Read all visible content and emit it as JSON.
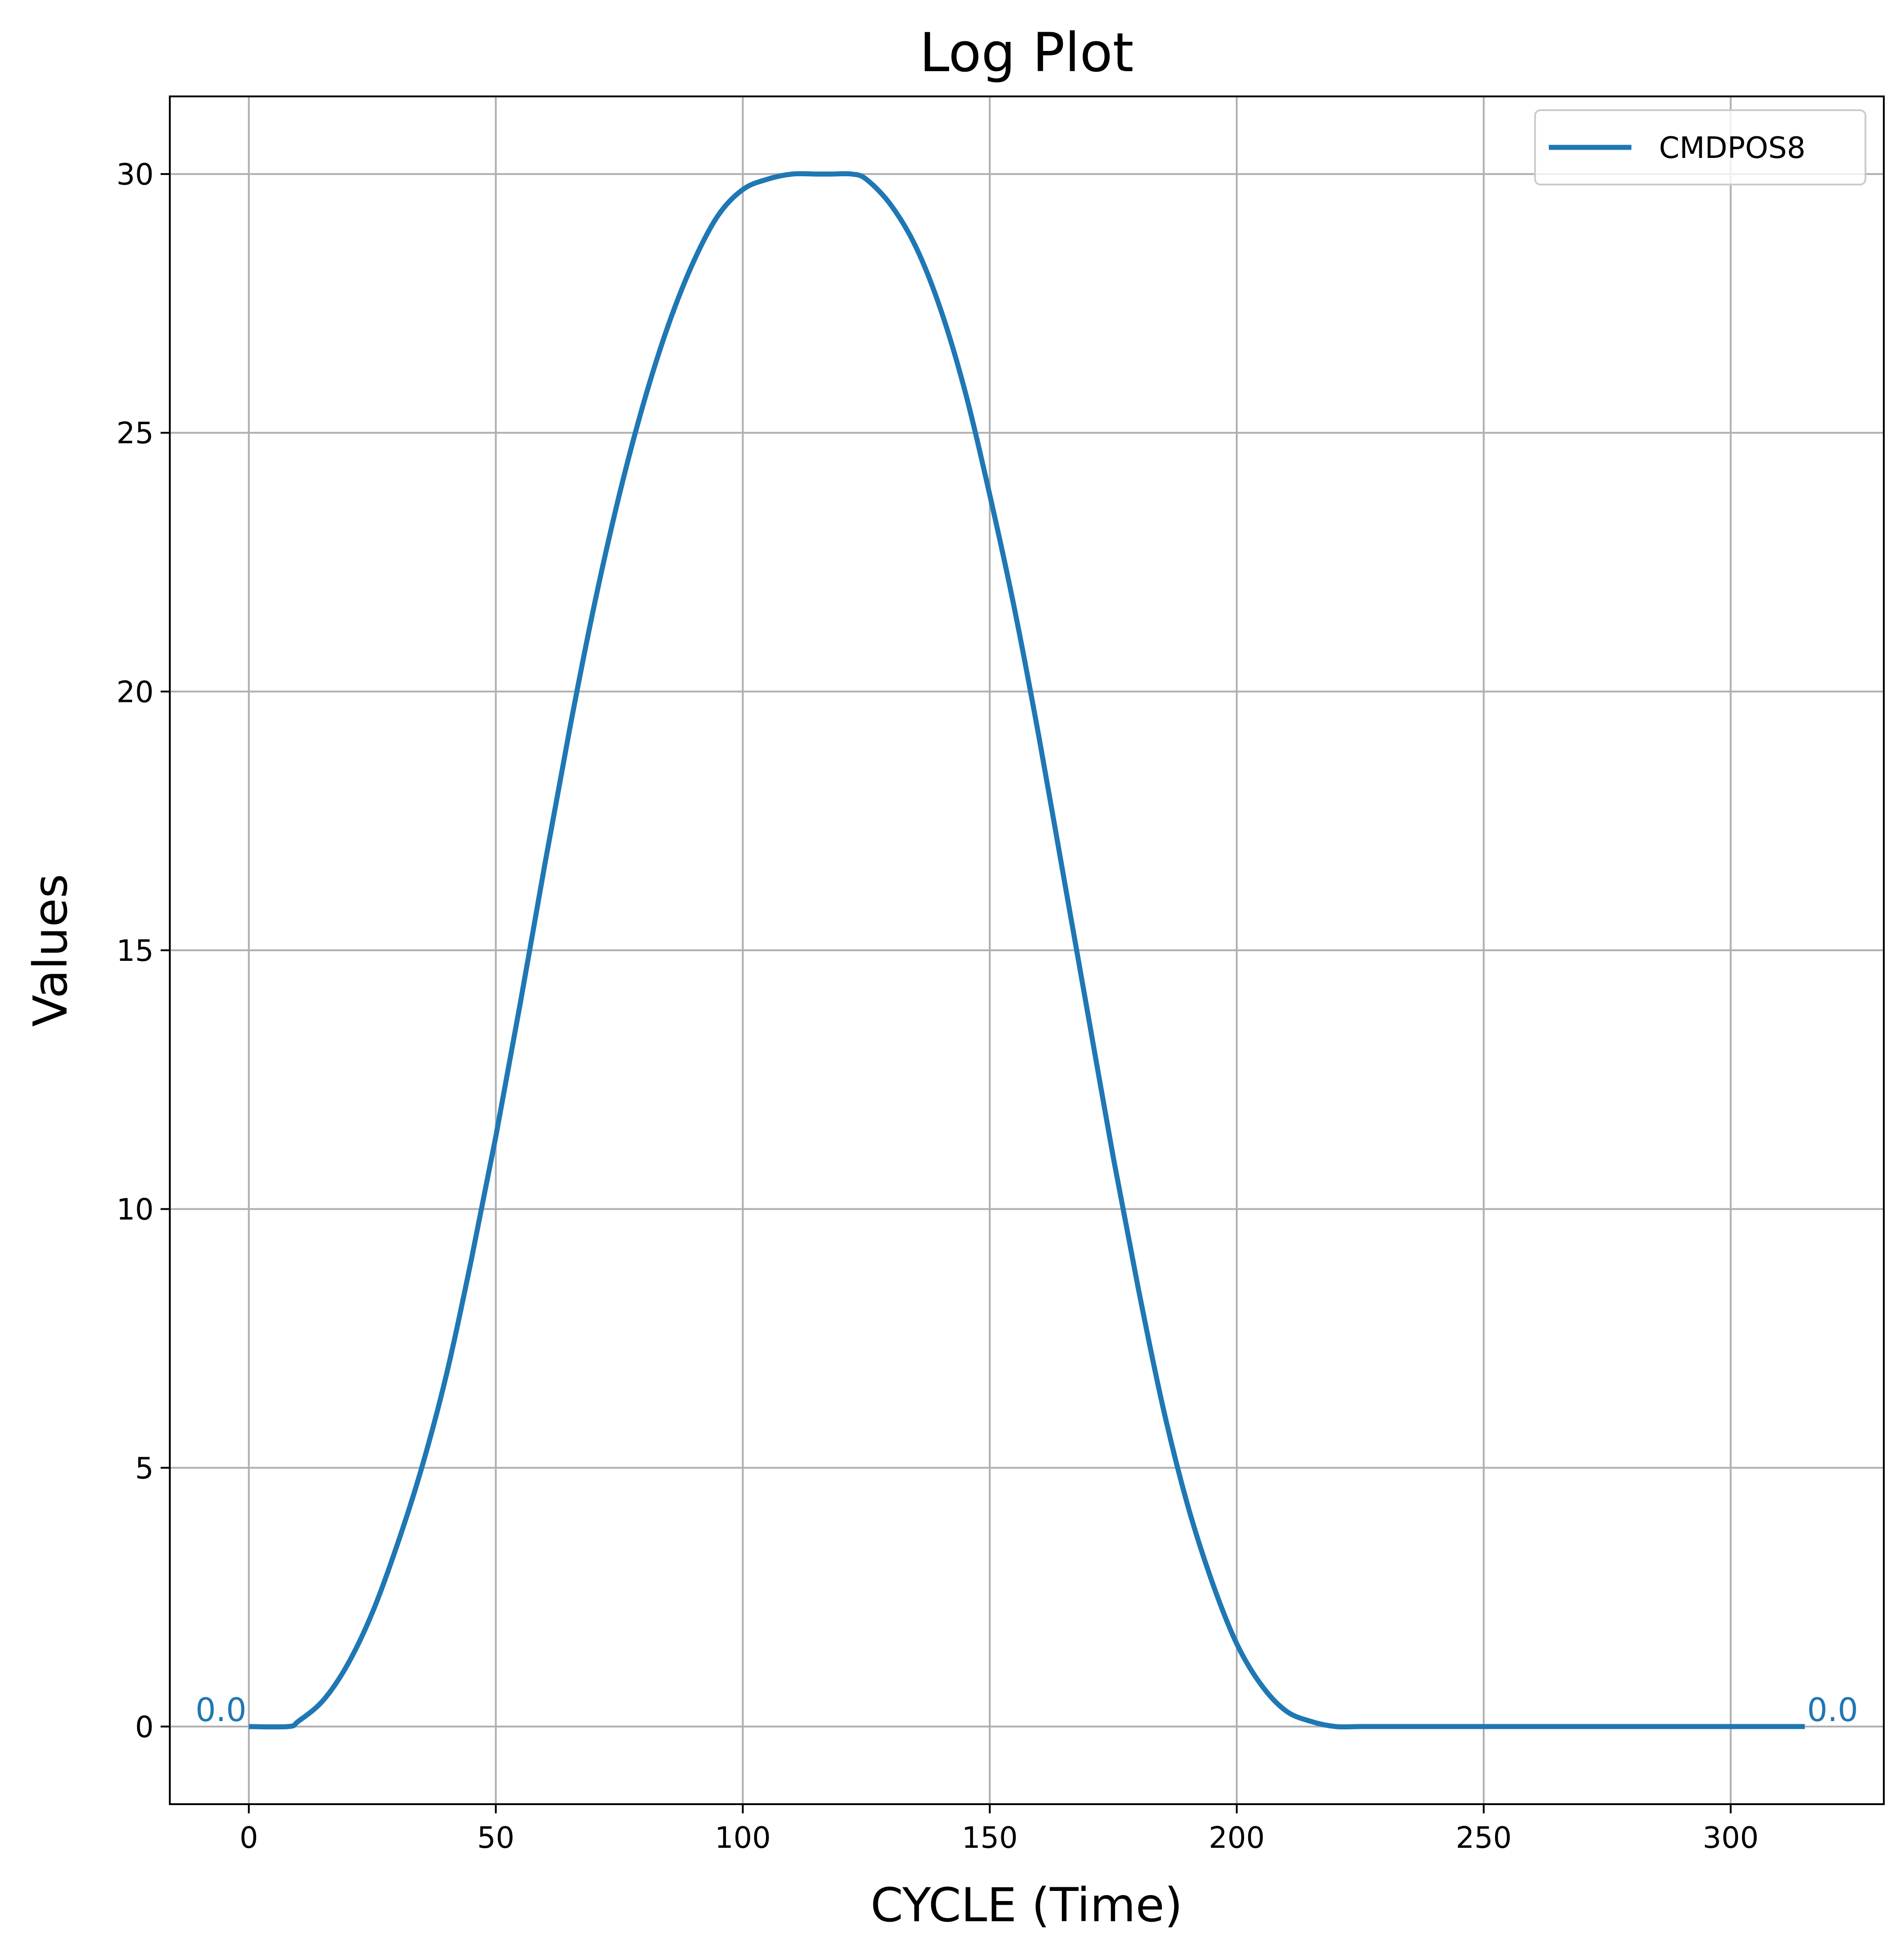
{
  "chart_data": {
    "type": "line",
    "title": "Log Plot",
    "xlabel": "CYCLE (Time)",
    "ylabel": "Values",
    "xlim": [
      -16,
      331
    ],
    "ylim": [
      -1.5,
      31.5
    ],
    "xticks": [
      0,
      50,
      100,
      150,
      200,
      250,
      300
    ],
    "yticks": [
      0,
      5,
      10,
      15,
      20,
      25,
      30
    ],
    "grid": true,
    "legend_position": "top-right",
    "series": [
      {
        "name": "CMDPOS8",
        "color": "#1f77b4",
        "x": [
          0,
          8,
          10,
          15,
          20,
          25,
          30,
          35,
          40,
          45,
          50,
          55,
          60,
          65,
          70,
          75,
          80,
          85,
          90,
          95,
          100,
          105,
          110,
          115,
          118,
          122,
          125,
          130,
          135,
          140,
          145,
          150,
          155,
          160,
          165,
          170,
          175,
          180,
          185,
          190,
          195,
          200,
          205,
          210,
          215,
          220,
          225,
          229,
          232,
          240,
          260,
          280,
          300,
          315
        ],
        "y": [
          0,
          0,
          0.1,
          0.5,
          1.2,
          2.2,
          3.5,
          5.0,
          6.8,
          9.0,
          11.4,
          14.0,
          16.7,
          19.3,
          21.7,
          23.8,
          25.6,
          27.1,
          28.3,
          29.2,
          29.7,
          29.9,
          30.0,
          30.0,
          30.0,
          30.0,
          29.9,
          29.4,
          28.6,
          27.4,
          25.8,
          23.8,
          21.6,
          19.1,
          16.4,
          13.7,
          11.0,
          8.5,
          6.2,
          4.3,
          2.8,
          1.6,
          0.8,
          0.3,
          0.1,
          0,
          0,
          0,
          0,
          0,
          0,
          0,
          0,
          0
        ],
        "start_label": "0.0",
        "end_label": "0.0"
      }
    ]
  }
}
